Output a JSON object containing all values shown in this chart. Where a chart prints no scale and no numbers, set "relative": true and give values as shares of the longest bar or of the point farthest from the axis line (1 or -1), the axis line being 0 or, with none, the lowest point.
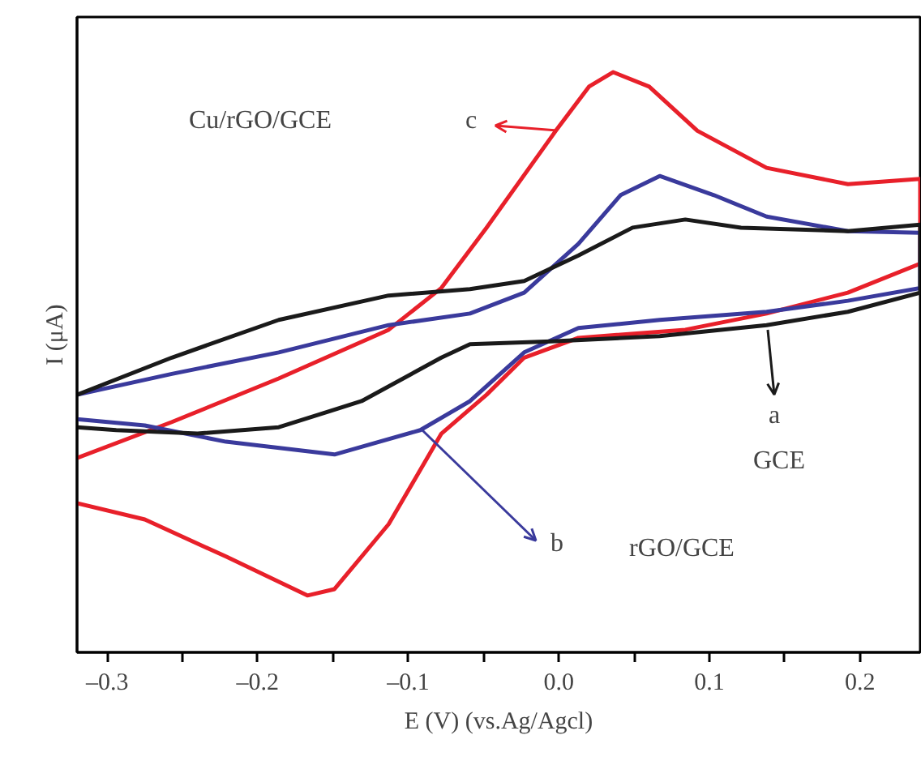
{
  "chart_data": {
    "type": "line",
    "relative": true,
    "xlabel": "E (V) (vs.Ag/Agcl)",
    "ylabel": "I (μA)",
    "xlim": [
      -0.32,
      0.24
    ],
    "xticks": [
      {
        "value": -0.3,
        "label": "–0.3"
      },
      {
        "value": -0.25,
        "label": null
      },
      {
        "value": -0.2,
        "label": "–0.2"
      },
      {
        "value": -0.15,
        "label": null
      },
      {
        "value": -0.1,
        "label": "–0.1"
      },
      {
        "value": -0.05,
        "label": null
      },
      {
        "value": 0.0,
        "label": "0.0"
      },
      {
        "value": 0.05,
        "label": null
      },
      0.1,
      {
        "value": 0.15,
        "label": null
      },
      0.2
    ],
    "grid": false,
    "marker": "none",
    "line_style": "solid",
    "series": [
      {
        "color": "#e8202a",
        "x": [
          -0.32,
          -0.257,
          -0.186,
          -0.113,
          -0.078,
          -0.048,
          -0.002,
          0.02,
          0.036,
          0.06,
          0.092,
          0.138,
          0.192,
          0.24,
          0.24,
          0.192,
          0.138,
          0.084,
          0.013,
          -0.023,
          -0.048,
          -0.078,
          -0.113,
          -0.149,
          -0.167,
          -0.221,
          -0.275,
          -0.32
        ],
        "values": [
          0.335,
          0.397,
          0.472,
          0.556,
          0.628,
          0.732,
          0.899,
          0.975,
          1.0,
          0.975,
          0.899,
          0.835,
          0.807,
          0.816,
          0.67,
          0.62,
          0.584,
          0.556,
          0.542,
          0.508,
          0.444,
          0.377,
          0.221,
          0.109,
          0.098,
          0.165,
          0.229,
          0.257
        ]
      },
      {
        "color": "#3a3a9c",
        "x": [
          -0.32,
          -0.257,
          -0.186,
          -0.113,
          -0.059,
          -0.023,
          0.013,
          0.041,
          0.067,
          0.103,
          0.138,
          0.192,
          0.24,
          0.24,
          0.192,
          0.138,
          0.067,
          0.013,
          -0.023,
          -0.059,
          -0.092,
          -0.149,
          -0.221,
          -0.275,
          -0.32
        ],
        "values": [
          0.444,
          0.48,
          0.517,
          0.564,
          0.584,
          0.62,
          0.704,
          0.788,
          0.821,
          0.788,
          0.751,
          0.726,
          0.723,
          0.628,
          0.606,
          0.587,
          0.573,
          0.559,
          0.517,
          0.433,
          0.383,
          0.341,
          0.363,
          0.391,
          0.402
        ]
      },
      {
        "color": "#1a1a1a",
        "x": [
          -0.32,
          -0.257,
          -0.186,
          -0.113,
          -0.059,
          -0.023,
          0.013,
          0.049,
          0.084,
          0.121,
          0.192,
          0.24,
          0.24,
          0.192,
          0.138,
          0.067,
          -0.005,
          -0.059,
          -0.078,
          -0.131,
          -0.186,
          -0.24,
          -0.294,
          -0.32
        ],
        "values": [
          0.444,
          0.508,
          0.573,
          0.615,
          0.626,
          0.64,
          0.684,
          0.732,
          0.746,
          0.732,
          0.726,
          0.737,
          0.62,
          0.587,
          0.564,
          0.545,
          0.536,
          0.531,
          0.508,
          0.433,
          0.388,
          0.377,
          0.383,
          0.388
        ]
      }
    ],
    "annotations": [
      "c",
      "Cu/rGO/GCE",
      "a",
      "GCE",
      "b",
      "rGO/GCE"
    ]
  }
}
